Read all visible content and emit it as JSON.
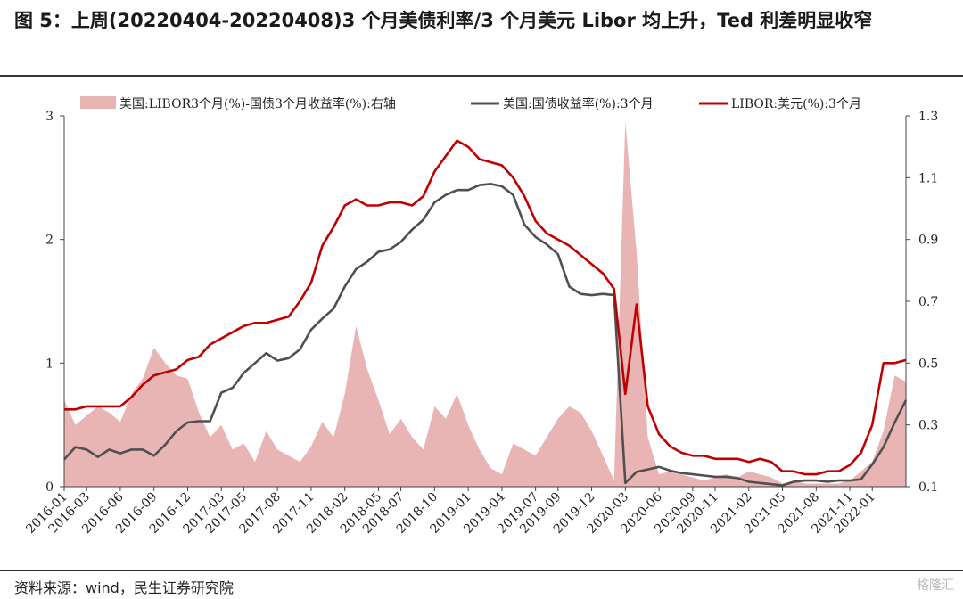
{
  "figure": {
    "title": "图 5：上周(20220404-20220408)3 个月美债利率/3 个月美元 Libor 均上升，Ted 利差明显收窄",
    "source": "资料来源：wind，民生证券研究院",
    "watermark": "格隆汇"
  },
  "chart_data": {
    "type": "line",
    "title": "",
    "xlabel": "",
    "ylabel": "",
    "ylim": [
      0,
      3
    ],
    "y2lim": [
      0.1,
      1.3
    ],
    "yticks": [
      "0",
      "1",
      "2",
      "3"
    ],
    "y2ticks": [
      "0.1",
      "0.3",
      "0.5",
      "0.7",
      "0.9",
      "1.1",
      "1.3"
    ],
    "xticks": [
      "2016-01",
      "2016-03",
      "2016-06",
      "2016-09",
      "2016-12",
      "2017-03",
      "2017-05",
      "2017-08",
      "2017-11",
      "2018-02",
      "2018-05",
      "2018-07",
      "2018-10",
      "2019-01",
      "2019-04",
      "2019-07",
      "2019-09",
      "2019-12",
      "2020-03",
      "2020-06",
      "2020-09",
      "2020-11",
      "2021-02",
      "2021-05",
      "2021-08",
      "2021-11",
      "2022-01"
    ],
    "legend_position": "top",
    "colors": {
      "spread": "#e8b4b4",
      "treasury": "#505050",
      "libor": "#c00000"
    },
    "series": [
      {
        "name": "美国:LIBOR3个月(%)-国债3个月收益率(%):右轴",
        "kind": "area",
        "axis": "right",
        "x": [
          "2016-01",
          "2016-02",
          "2016-03",
          "2016-04",
          "2016-05",
          "2016-06",
          "2016-07",
          "2016-08",
          "2016-09",
          "2016-10",
          "2016-11",
          "2016-12",
          "2017-01",
          "2017-02",
          "2017-03",
          "2017-04",
          "2017-05",
          "2017-06",
          "2017-07",
          "2017-08",
          "2017-09",
          "2017-10",
          "2017-11",
          "2017-12",
          "2018-01",
          "2018-02",
          "2018-03",
          "2018-04",
          "2018-05",
          "2018-06",
          "2018-07",
          "2018-08",
          "2018-09",
          "2018-10",
          "2018-11",
          "2018-12",
          "2019-01",
          "2019-02",
          "2019-03",
          "2019-04",
          "2019-05",
          "2019-06",
          "2019-07",
          "2019-08",
          "2019-09",
          "2019-10",
          "2019-11",
          "2019-12",
          "2020-01",
          "2020-02",
          "2020-03",
          "2020-04",
          "2020-05",
          "2020-06",
          "2020-07",
          "2020-08",
          "2020-09",
          "2020-10",
          "2020-11",
          "2020-12",
          "2021-01",
          "2021-02",
          "2021-03",
          "2021-04",
          "2021-05",
          "2021-06",
          "2021-07",
          "2021-08",
          "2021-09",
          "2021-10",
          "2021-11",
          "2021-12",
          "2022-01",
          "2022-02",
          "2022-03",
          "2022-04"
        ],
        "values": [
          0.38,
          0.3,
          0.33,
          0.36,
          0.34,
          0.31,
          0.4,
          0.45,
          0.55,
          0.5,
          0.46,
          0.45,
          0.34,
          0.26,
          0.3,
          0.22,
          0.24,
          0.18,
          0.28,
          0.22,
          0.2,
          0.18,
          0.23,
          0.31,
          0.26,
          0.4,
          0.62,
          0.48,
          0.38,
          0.27,
          0.32,
          0.26,
          0.22,
          0.36,
          0.32,
          0.4,
          0.3,
          0.22,
          0.16,
          0.14,
          0.24,
          0.22,
          0.2,
          0.26,
          0.32,
          0.36,
          0.34,
          0.28,
          0.2,
          0.12,
          1.28,
          0.86,
          0.26,
          0.14,
          0.15,
          0.14,
          0.13,
          0.12,
          0.13,
          0.14,
          0.13,
          0.15,
          0.14,
          0.13,
          0.11,
          0.12,
          0.11,
          0.11,
          0.11,
          0.11,
          0.12,
          0.15,
          0.18,
          0.28,
          0.46,
          0.44
        ]
      },
      {
        "name": "美国:国债收益率(%):3个月",
        "kind": "line",
        "axis": "left",
        "x": [
          "2016-01",
          "2016-02",
          "2016-03",
          "2016-04",
          "2016-05",
          "2016-06",
          "2016-07",
          "2016-08",
          "2016-09",
          "2016-10",
          "2016-11",
          "2016-12",
          "2017-01",
          "2017-02",
          "2017-03",
          "2017-04",
          "2017-05",
          "2017-06",
          "2017-07",
          "2017-08",
          "2017-09",
          "2017-10",
          "2017-11",
          "2017-12",
          "2018-01",
          "2018-02",
          "2018-03",
          "2018-04",
          "2018-05",
          "2018-06",
          "2018-07",
          "2018-08",
          "2018-09",
          "2018-10",
          "2018-11",
          "2018-12",
          "2019-01",
          "2019-02",
          "2019-03",
          "2019-04",
          "2019-05",
          "2019-06",
          "2019-07",
          "2019-08",
          "2019-09",
          "2019-10",
          "2019-11",
          "2019-12",
          "2020-01",
          "2020-02",
          "2020-03",
          "2020-04",
          "2020-05",
          "2020-06",
          "2020-07",
          "2020-08",
          "2020-09",
          "2020-10",
          "2020-11",
          "2020-12",
          "2021-01",
          "2021-02",
          "2021-03",
          "2021-04",
          "2021-05",
          "2021-06",
          "2021-07",
          "2021-08",
          "2021-09",
          "2021-10",
          "2021-11",
          "2021-12",
          "2022-01",
          "2022-02",
          "2022-03",
          "2022-04"
        ],
        "values": [
          0.22,
          0.32,
          0.3,
          0.24,
          0.3,
          0.27,
          0.3,
          0.3,
          0.25,
          0.34,
          0.45,
          0.52,
          0.53,
          0.53,
          0.76,
          0.8,
          0.92,
          1.0,
          1.08,
          1.02,
          1.04,
          1.11,
          1.27,
          1.36,
          1.44,
          1.62,
          1.76,
          1.82,
          1.9,
          1.92,
          1.98,
          2.08,
          2.16,
          2.3,
          2.36,
          2.4,
          2.4,
          2.44,
          2.45,
          2.43,
          2.36,
          2.12,
          2.02,
          1.96,
          1.88,
          1.62,
          1.56,
          1.55,
          1.56,
          1.55,
          0.03,
          0.12,
          0.14,
          0.16,
          0.13,
          0.11,
          0.1,
          0.09,
          0.08,
          0.08,
          0.07,
          0.04,
          0.03,
          0.02,
          0.01,
          0.04,
          0.05,
          0.05,
          0.04,
          0.05,
          0.05,
          0.06,
          0.18,
          0.32,
          0.52,
          0.7
        ]
      },
      {
        "name": "LIBOR:美元(%):3个月",
        "kind": "line",
        "axis": "right",
        "x": [
          "2016-01",
          "2016-02",
          "2016-03",
          "2016-04",
          "2016-05",
          "2016-06",
          "2016-07",
          "2016-08",
          "2016-09",
          "2016-10",
          "2016-11",
          "2016-12",
          "2017-01",
          "2017-02",
          "2017-03",
          "2017-04",
          "2017-05",
          "2017-06",
          "2017-07",
          "2017-08",
          "2017-09",
          "2017-10",
          "2017-11",
          "2017-12",
          "2018-01",
          "2018-02",
          "2018-03",
          "2018-04",
          "2018-05",
          "2018-06",
          "2018-07",
          "2018-08",
          "2018-09",
          "2018-10",
          "2018-11",
          "2018-12",
          "2019-01",
          "2019-02",
          "2019-03",
          "2019-04",
          "2019-05",
          "2019-06",
          "2019-07",
          "2019-08",
          "2019-09",
          "2019-10",
          "2019-11",
          "2019-12",
          "2020-01",
          "2020-02",
          "2020-03",
          "2020-04",
          "2020-05",
          "2020-06",
          "2020-07",
          "2020-08",
          "2020-09",
          "2020-10",
          "2020-11",
          "2020-12",
          "2021-01",
          "2021-02",
          "2021-03",
          "2021-04",
          "2021-05",
          "2021-06",
          "2021-07",
          "2021-08",
          "2021-09",
          "2021-10",
          "2021-11",
          "2021-12",
          "2022-01",
          "2022-02",
          "2022-03",
          "2022-04"
        ],
        "values": [
          0.35,
          0.35,
          0.36,
          0.36,
          0.36,
          0.36,
          0.39,
          0.43,
          0.46,
          0.47,
          0.48,
          0.51,
          0.52,
          0.56,
          0.58,
          0.6,
          0.62,
          0.63,
          0.63,
          0.64,
          0.65,
          0.7,
          0.76,
          0.88,
          0.94,
          1.01,
          1.03,
          1.01,
          1.01,
          1.02,
          1.02,
          1.01,
          1.04,
          1.12,
          1.17,
          1.22,
          1.2,
          1.16,
          1.15,
          1.14,
          1.1,
          1.04,
          0.96,
          0.92,
          0.9,
          0.88,
          0.85,
          0.82,
          0.79,
          0.74,
          0.4,
          0.69,
          0.36,
          0.27,
          0.23,
          0.21,
          0.2,
          0.2,
          0.19,
          0.19,
          0.19,
          0.18,
          0.19,
          0.18,
          0.15,
          0.15,
          0.14,
          0.14,
          0.15,
          0.15,
          0.17,
          0.21,
          0.3,
          0.5,
          0.5,
          0.51
        ]
      }
    ]
  }
}
